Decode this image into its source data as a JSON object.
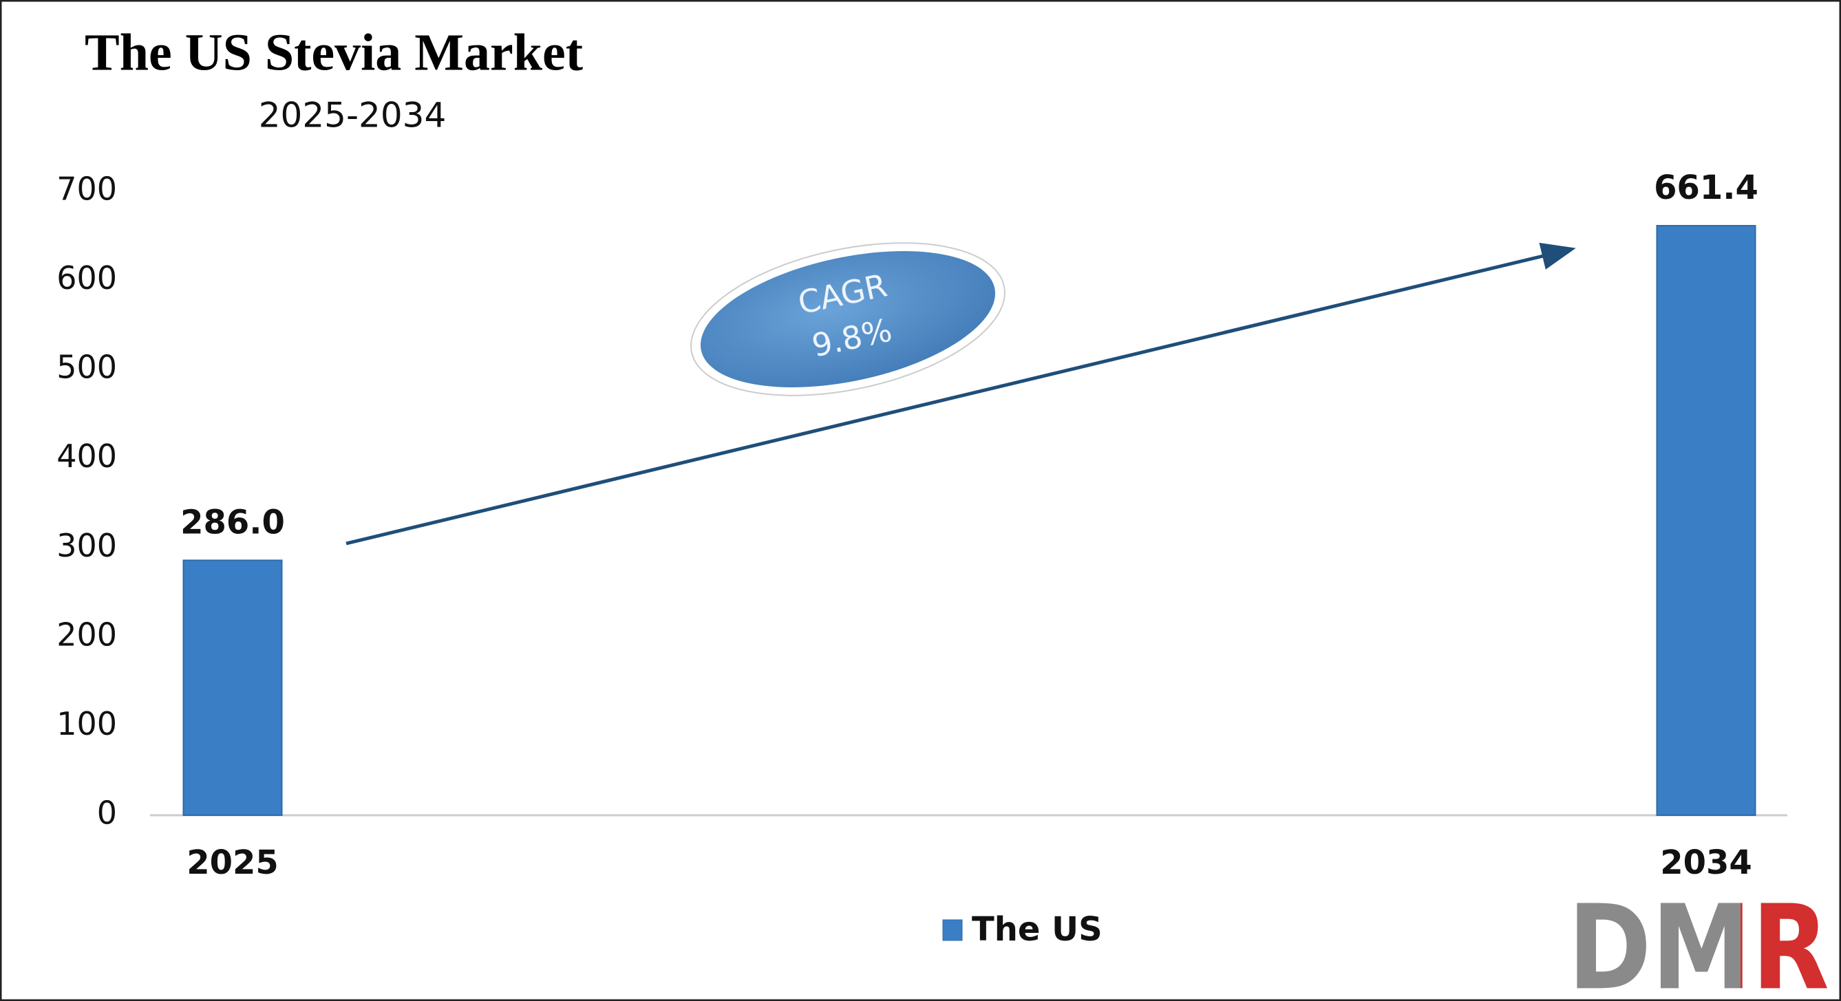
{
  "chart_data": {
    "type": "bar",
    "title": "The US Stevia Market",
    "subtitle": "2025-2034",
    "categories": [
      "2025",
      "2034"
    ],
    "series": [
      {
        "name": "The US",
        "color": "#3a7ec6",
        "values": [
          286.0,
          661.4
        ],
        "value_labels": [
          "286.0",
          "661.4"
        ]
      }
    ],
    "ylim": [
      0,
      700
    ],
    "yticks": [
      0,
      100,
      200,
      300,
      400,
      500,
      600,
      700
    ],
    "grid": false,
    "legend": "bottom",
    "annotation": {
      "label": "CAGR",
      "value": "9.8%"
    },
    "logo": "DMR"
  }
}
